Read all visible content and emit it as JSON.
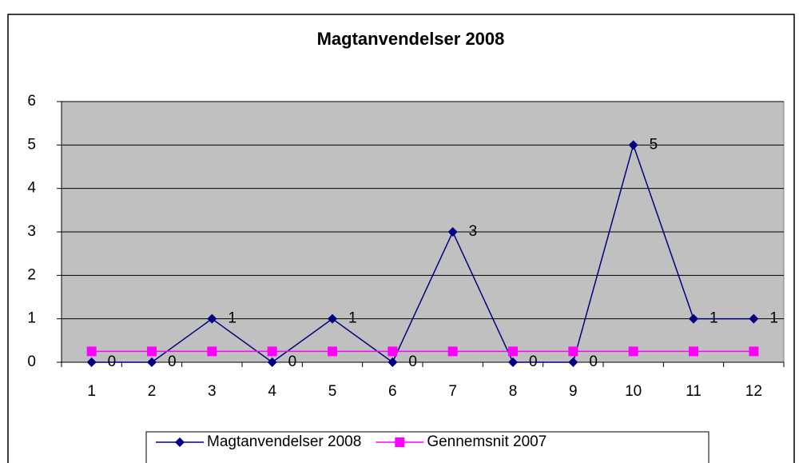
{
  "chart_data": {
    "type": "line",
    "title": "Magtanvendelser 2008",
    "categories": [
      "1",
      "2",
      "3",
      "4",
      "5",
      "6",
      "7",
      "8",
      "9",
      "10",
      "11",
      "12"
    ],
    "series": [
      {
        "name": "Magtanvendelser 2008",
        "color": "#000080",
        "marker": "diamond",
        "data_labels": true,
        "values": [
          0,
          0,
          1,
          0,
          1,
          0,
          3,
          0,
          0,
          5,
          1,
          1
        ]
      },
      {
        "name": "Gennemsnit 2007",
        "color": "#ff00ff",
        "marker": "square",
        "data_labels": false,
        "values": [
          0.25,
          0.25,
          0.25,
          0.25,
          0.25,
          0.25,
          0.25,
          0.25,
          0.25,
          0.25,
          0.25,
          0.25
        ]
      }
    ],
    "ylim": [
      0,
      6
    ],
    "yticks": [
      0,
      1,
      2,
      3,
      4,
      5,
      6
    ],
    "grid": true,
    "legend": "bottom",
    "plot_background": "#c0c0c0"
  }
}
